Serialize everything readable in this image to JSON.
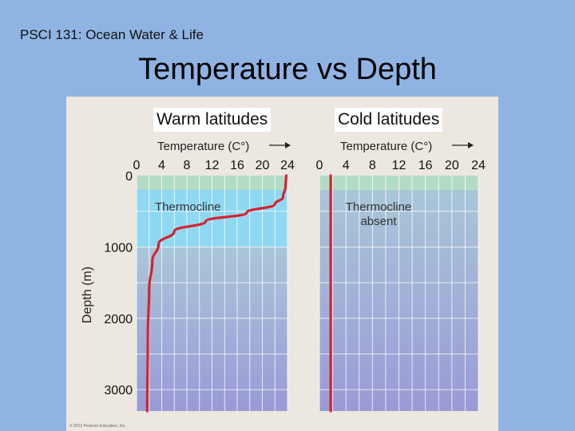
{
  "header": {
    "course": "PSCI 131: Ocean Water & Life",
    "title": "Temperature vs Depth"
  },
  "credit": "© 2012 Pearson Education, Inc.",
  "colors": {
    "background": "#8fb4e3",
    "mixed_layer": "#b2dcc6",
    "thermocline_band": "#8fd8f2",
    "deep_water_top": "#a9c6d9",
    "deep_water_bottom": "#9a9ad6",
    "profile_line": "#d6232e"
  },
  "chart_data": [
    {
      "type": "line",
      "panel_label": "Warm latitudes",
      "xlabel": "Temperature (C°)",
      "ylabel": "Depth (m)",
      "xlim": [
        0,
        24
      ],
      "ylim": [
        3300,
        0
      ],
      "x_ticks": [
        "0",
        "4",
        "8",
        "12",
        "16",
        "20",
        "24"
      ],
      "y_ticks": [
        "0",
        "1000",
        "2000",
        "3000"
      ],
      "band_label": "Thermocline",
      "thermocline_depth_range": [
        200,
        1000
      ],
      "series": [
        {
          "points": [
            {
              "x": 23.8,
              "y": 0
            },
            {
              "x": 23.7,
              "y": 150
            },
            {
              "x": 23.3,
              "y": 300
            },
            {
              "x": 22.0,
              "y": 400
            },
            {
              "x": 17.5,
              "y": 520
            },
            {
              "x": 11.0,
              "y": 640
            },
            {
              "x": 6.0,
              "y": 780
            },
            {
              "x": 3.5,
              "y": 960
            },
            {
              "x": 2.5,
              "y": 1200
            },
            {
              "x": 2.0,
              "y": 1600
            },
            {
              "x": 1.8,
              "y": 2200
            },
            {
              "x": 1.7,
              "y": 3300
            }
          ]
        }
      ]
    },
    {
      "type": "line",
      "panel_label": "Cold latitudes",
      "xlabel": "Temperature (C°)",
      "xlim": [
        0,
        24
      ],
      "ylim": [
        3300,
        0
      ],
      "x_ticks": [
        "0",
        "4",
        "8",
        "12",
        "16",
        "20",
        "24"
      ],
      "band_label": "Thermocline absent",
      "series": [
        {
          "points": [
            {
              "x": 1.7,
              "y": 0
            },
            {
              "x": 1.7,
              "y": 3300
            }
          ]
        }
      ]
    }
  ]
}
